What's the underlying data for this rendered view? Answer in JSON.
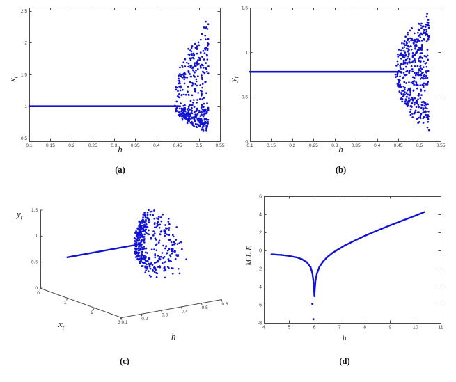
{
  "figure": {
    "background": "#ffffff",
    "dot_color": "#1212d2",
    "axis_color": "#4a4a4a",
    "tick_label_color": "#3a3a3a"
  },
  "panels": [
    {
      "label": "(a)"
    },
    {
      "label": "(b)"
    },
    {
      "label": "(c)"
    },
    {
      "label": "(d)"
    }
  ],
  "chart_data": [
    {
      "id": "a",
      "type": "bifurcation2d",
      "xlabel": "h",
      "ylabel_main": "x",
      "ylabel_sub": "t",
      "xlim": [
        0.1,
        0.55
      ],
      "ylim": [
        0.45,
        2.55
      ],
      "xtick_values": [
        0.1,
        0.15,
        0.2,
        0.25,
        0.3,
        0.35,
        0.4,
        0.45,
        0.5,
        0.55
      ],
      "xtick_labels": [
        "0.1",
        "0.15",
        "0.2",
        "0.25",
        "0.3",
        "0.35",
        "0.4",
        "0.45",
        "0.5",
        "0.55"
      ],
      "ytick_values": [
        0.5,
        1,
        1.5,
        2,
        2.5
      ],
      "ytick_labels": [
        "0.5",
        "1",
        "1.5",
        "2",
        "2.5"
      ],
      "fixed_line": {
        "value": 1.0,
        "x_start": 0.1,
        "x_end": 0.456
      },
      "chaos_cloud": {
        "x_start": 0.443,
        "x_end": 0.523,
        "center": 1.0,
        "spread_up": 1.42,
        "spread_down": 0.42,
        "points": 430,
        "seed": 3
      }
    },
    {
      "id": "b",
      "type": "bifurcation2d",
      "xlabel": "h",
      "ylabel_main": "y",
      "ylabel_sub": "t",
      "xlim": [
        0.1,
        0.55
      ],
      "ylim": [
        0,
        1.5
      ],
      "xtick_values": [
        0.1,
        0.15,
        0.2,
        0.25,
        0.3,
        0.35,
        0.4,
        0.45,
        0.5,
        0.55
      ],
      "xtick_labels": [
        "0.1",
        "0.15",
        "0.2",
        "0.25",
        "0.3",
        "0.35",
        "0.4",
        "0.45",
        "0.5",
        "0.55"
      ],
      "ytick_values": [
        0,
        0.5,
        1,
        1.5
      ],
      "ytick_labels": [
        "0",
        "0.5",
        "1",
        "1.5"
      ],
      "fixed_line": {
        "value": 0.78,
        "x_start": 0.1,
        "x_end": 0.456
      },
      "chaos_cloud": {
        "x_start": 0.443,
        "x_end": 0.523,
        "center": 0.78,
        "spread_up": 0.69,
        "spread_down": 0.71,
        "points": 430,
        "seed": 5
      }
    },
    {
      "id": "c",
      "type": "bifurcation3d",
      "axis_labels": {
        "x_main": "x",
        "x_sub": "t",
        "y_main": "y",
        "y_sub": "t",
        "h": "h"
      },
      "xt_lim": [
        0,
        3
      ],
      "h_lim": [
        0.1,
        0.6
      ],
      "yt_lim": [
        0,
        1.5
      ],
      "xt_tick_values": [
        0,
        1,
        2,
        3
      ],
      "xt_tick_labels": [
        "0",
        "1",
        "2",
        "3"
      ],
      "h_tick_values": [
        0.1,
        0.2,
        0.3,
        0.4,
        0.5,
        0.6
      ],
      "h_tick_labels": [
        "0.1",
        "0.2",
        "0.3",
        "0.4",
        "0.5",
        "0.6"
      ],
      "yt_tick_values": [
        0,
        0.5,
        1,
        1.5
      ],
      "yt_tick_labels": [
        "0",
        "0.5",
        "1",
        "1.5"
      ],
      "fixed_line": {
        "xt": 1.0,
        "yt": 0.78,
        "h_start": 0.1,
        "h_end": 0.456
      },
      "chaos_cloud": {
        "h_start": 0.443,
        "h_end": 0.523,
        "xt_center": 1.0,
        "xt_up": 1.35,
        "xt_down": 0.42,
        "yt_center": 0.78,
        "yt_up": 0.69,
        "yt_down": 0.71,
        "points": 400,
        "seed": 9
      }
    },
    {
      "id": "d",
      "type": "mle_curve",
      "xlabel": "h",
      "ylabel": "M.L.E",
      "xlim": [
        4,
        11
      ],
      "ylim": [
        -8,
        6
      ],
      "xtick_values": [
        4,
        5,
        6,
        7,
        8,
        9,
        10,
        11
      ],
      "xtick_labels": [
        "4",
        "5",
        "6",
        "7",
        "8",
        "9",
        "10",
        "11"
      ],
      "ytick_values": [
        -8,
        -6,
        -4,
        -2,
        0,
        2,
        4,
        6
      ],
      "ytick_labels": [
        "-8",
        "-6",
        "-4",
        "-2",
        "0",
        "2",
        "4",
        "6"
      ],
      "curve_points": [
        [
          4.3,
          -0.42
        ],
        [
          4.7,
          -0.5
        ],
        [
          5.0,
          -0.6
        ],
        [
          5.3,
          -0.76
        ],
        [
          5.5,
          -0.95
        ],
        [
          5.7,
          -1.3
        ],
        [
          5.85,
          -1.85
        ],
        [
          5.92,
          -2.5
        ],
        [
          5.96,
          -3.3
        ],
        [
          5.99,
          -4.4
        ],
        [
          6.0,
          -5.05
        ],
        [
          6.02,
          -4.15
        ],
        [
          6.05,
          -3.2
        ],
        [
          6.1,
          -2.55
        ],
        [
          6.2,
          -1.8
        ],
        [
          6.35,
          -1.2
        ],
        [
          6.5,
          -0.75
        ],
        [
          6.7,
          -0.3
        ],
        [
          6.9,
          0.05
        ],
        [
          7.2,
          0.55
        ],
        [
          7.6,
          1.1
        ],
        [
          8.0,
          1.62
        ],
        [
          8.5,
          2.22
        ],
        [
          9.0,
          2.78
        ],
        [
          9.5,
          3.32
        ],
        [
          10.0,
          3.85
        ],
        [
          10.35,
          4.25
        ]
      ],
      "outlier_points": [
        [
          5.96,
          -7.6
        ],
        [
          5.92,
          -5.9
        ]
      ]
    }
  ]
}
